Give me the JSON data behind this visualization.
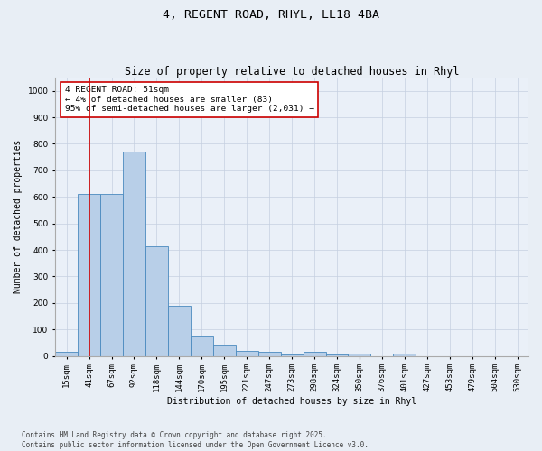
{
  "title1": "4, REGENT ROAD, RHYL, LL18 4BA",
  "title2": "Size of property relative to detached houses in Rhyl",
  "xlabel": "Distribution of detached houses by size in Rhyl",
  "ylabel": "Number of detached properties",
  "categories": [
    "15sqm",
    "41sqm",
    "67sqm",
    "92sqm",
    "118sqm",
    "144sqm",
    "170sqm",
    "195sqm",
    "221sqm",
    "247sqm",
    "273sqm",
    "298sqm",
    "324sqm",
    "350sqm",
    "376sqm",
    "401sqm",
    "427sqm",
    "453sqm",
    "479sqm",
    "504sqm",
    "530sqm"
  ],
  "values": [
    15,
    610,
    610,
    770,
    415,
    190,
    75,
    40,
    20,
    15,
    5,
    15,
    5,
    10,
    0,
    10,
    0,
    0,
    0,
    0,
    0
  ],
  "bar_color": "#b8cfe8",
  "bar_edge_color": "#4a8abf",
  "vline_x": 1,
  "vline_color": "#cc0000",
  "annotation_text": "4 REGENT ROAD: 51sqm\n← 4% of detached houses are smaller (83)\n95% of semi-detached houses are larger (2,031) →",
  "annotation_box_color": "#cc0000",
  "ylim": [
    0,
    1050
  ],
  "yticks": [
    0,
    100,
    200,
    300,
    400,
    500,
    600,
    700,
    800,
    900,
    1000
  ],
  "footnote": "Contains HM Land Registry data © Crown copyright and database right 2025.\nContains public sector information licensed under the Open Government Licence v3.0.",
  "bg_color": "#e8eef5",
  "plot_bg_color": "#eaf0f8",
  "grid_color": "#c5d0e0",
  "title1_fontsize": 9.5,
  "title2_fontsize": 8.5,
  "axis_label_fontsize": 7,
  "tick_fontsize": 6.5,
  "annotation_fontsize": 6.8,
  "footnote_fontsize": 5.5
}
